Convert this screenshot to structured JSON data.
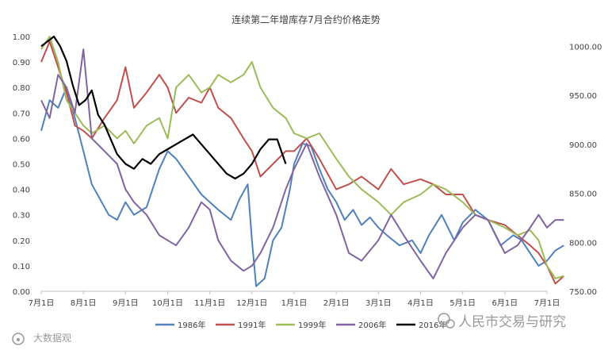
{
  "chart_data": {
    "type": "line",
    "title": "连续第二年增库存7月合约价格走势",
    "x_tick_labels": [
      "7月1日",
      "8月1日",
      "9月1日",
      "10月1日",
      "11月1日",
      "12月1日",
      "1月1日",
      "2月1日",
      "3月1日",
      "4月1日",
      "5月1日",
      "6月1日",
      "7月1日"
    ],
    "y_left": {
      "ylim": [
        0,
        1.0
      ],
      "ticks": [
        "0.00",
        "0.10",
        "0.20",
        "0.30",
        "0.40",
        "0.50",
        "0.60",
        "0.70",
        "0.80",
        "0.90",
        "1.00"
      ]
    },
    "y_right": {
      "ylim": [
        750,
        1010
      ],
      "ticks": [
        "750.00",
        "800.00",
        "850.00",
        "900.00",
        "950.00",
        "1000.00"
      ]
    },
    "grid": false,
    "legend_position": "bottom",
    "series": [
      {
        "name": "1986年",
        "axis": "left",
        "color": "#4f81bd",
        "x": [
          0,
          0.2,
          0.4,
          0.6,
          0.8,
          1.0,
          1.2,
          1.4,
          1.6,
          1.8,
          2.0,
          2.2,
          2.5,
          2.8,
          3.0,
          3.2,
          3.5,
          3.8,
          4.0,
          4.2,
          4.5,
          4.7,
          4.9,
          5.0,
          5.1,
          5.3,
          5.5,
          5.7,
          5.9,
          6.0,
          6.2,
          6.4,
          6.6,
          6.8,
          7.0,
          7.2,
          7.4,
          7.6,
          7.8,
          8.0,
          8.2,
          8.5,
          8.8,
          9.0,
          9.2,
          9.5,
          9.8,
          10.0,
          10.3,
          10.6,
          10.9,
          11.2,
          11.4,
          11.6,
          11.8,
          12.0,
          12.2,
          12.4
        ],
        "values": [
          0.63,
          0.75,
          0.72,
          0.8,
          0.68,
          0.55,
          0.42,
          0.36,
          0.3,
          0.28,
          0.35,
          0.3,
          0.33,
          0.48,
          0.55,
          0.52,
          0.45,
          0.38,
          0.35,
          0.32,
          0.28,
          0.36,
          0.42,
          0.2,
          0.02,
          0.05,
          0.2,
          0.25,
          0.4,
          0.5,
          0.58,
          0.57,
          0.48,
          0.4,
          0.35,
          0.28,
          0.32,
          0.26,
          0.29,
          0.25,
          0.22,
          0.18,
          0.2,
          0.15,
          0.22,
          0.3,
          0.2,
          0.27,
          0.32,
          0.28,
          0.18,
          0.22,
          0.2,
          0.15,
          0.1,
          0.12,
          0.16,
          0.18
        ]
      },
      {
        "name": "1991年",
        "axis": "left",
        "color": "#c0504d",
        "x": [
          0,
          0.2,
          0.4,
          0.6,
          0.8,
          1.0,
          1.2,
          1.5,
          1.8,
          2.0,
          2.2,
          2.5,
          2.8,
          3.0,
          3.2,
          3.5,
          3.8,
          4.0,
          4.2,
          4.5,
          4.8,
          5.0,
          5.2,
          5.5,
          5.8,
          6.0,
          6.3,
          6.6,
          7.0,
          7.3,
          7.6,
          8.0,
          8.3,
          8.6,
          9.0,
          9.3,
          9.6,
          10.0,
          10.3,
          10.6,
          11.0,
          11.3,
          11.6,
          11.8,
          12.0,
          12.2,
          12.4
        ],
        "values": [
          0.9,
          0.98,
          0.88,
          0.78,
          0.65,
          0.63,
          0.6,
          0.68,
          0.75,
          0.88,
          0.72,
          0.78,
          0.85,
          0.8,
          0.7,
          0.76,
          0.74,
          0.8,
          0.72,
          0.68,
          0.6,
          0.55,
          0.45,
          0.5,
          0.55,
          0.55,
          0.6,
          0.52,
          0.4,
          0.42,
          0.45,
          0.4,
          0.48,
          0.42,
          0.44,
          0.42,
          0.38,
          0.38,
          0.3,
          0.28,
          0.26,
          0.22,
          0.18,
          0.15,
          0.1,
          0.03,
          0.06
        ]
      },
      {
        "name": "1999年",
        "axis": "left",
        "color": "#9bbb59",
        "x": [
          0,
          0.2,
          0.4,
          0.6,
          0.8,
          1.0,
          1.2,
          1.5,
          1.8,
          2.0,
          2.2,
          2.5,
          2.8,
          3.0,
          3.2,
          3.5,
          3.8,
          4.0,
          4.2,
          4.5,
          4.8,
          5.0,
          5.2,
          5.5,
          5.8,
          6.0,
          6.3,
          6.6,
          7.0,
          7.3,
          7.6,
          8.0,
          8.3,
          8.6,
          9.0,
          9.3,
          9.6,
          10.0,
          10.3,
          10.6,
          11.0,
          11.3,
          11.6,
          11.8,
          12.0,
          12.2,
          12.4
        ],
        "values": [
          0.95,
          1.0,
          0.9,
          0.75,
          0.7,
          0.65,
          0.62,
          0.65,
          0.6,
          0.63,
          0.58,
          0.65,
          0.68,
          0.6,
          0.8,
          0.85,
          0.78,
          0.8,
          0.85,
          0.82,
          0.85,
          0.9,
          0.8,
          0.72,
          0.68,
          0.62,
          0.6,
          0.62,
          0.52,
          0.45,
          0.4,
          0.35,
          0.3,
          0.35,
          0.38,
          0.42,
          0.4,
          0.35,
          0.3,
          0.28,
          0.25,
          0.22,
          0.24,
          0.2,
          0.1,
          0.05,
          0.06
        ]
      },
      {
        "name": "2006年",
        "axis": "left",
        "color": "#8064a2",
        "x": [
          0,
          0.2,
          0.4,
          0.6,
          0.8,
          1.0,
          1.2,
          1.5,
          1.8,
          2.0,
          2.2,
          2.5,
          2.8,
          3.0,
          3.2,
          3.5,
          3.8,
          4.0,
          4.2,
          4.5,
          4.8,
          5.0,
          5.2,
          5.5,
          5.8,
          6.0,
          6.3,
          6.6,
          7.0,
          7.3,
          7.6,
          8.0,
          8.3,
          8.6,
          9.0,
          9.3,
          9.6,
          10.0,
          10.3,
          10.6,
          11.0,
          11.3,
          11.6,
          11.8,
          12.0,
          12.2,
          12.4
        ],
        "values": [
          0.75,
          0.68,
          0.85,
          0.8,
          0.7,
          0.95,
          0.6,
          0.55,
          0.5,
          0.4,
          0.35,
          0.3,
          0.22,
          0.2,
          0.18,
          0.25,
          0.35,
          0.32,
          0.2,
          0.12,
          0.08,
          0.1,
          0.15,
          0.25,
          0.4,
          0.48,
          0.58,
          0.45,
          0.3,
          0.15,
          0.12,
          0.2,
          0.3,
          0.22,
          0.12,
          0.05,
          0.15,
          0.25,
          0.3,
          0.28,
          0.15,
          0.18,
          0.25,
          0.3,
          0.25,
          0.28,
          0.28
        ]
      },
      {
        "name": "2016年",
        "axis": "right",
        "color": "#000000",
        "x": [
          0,
          0.15,
          0.3,
          0.45,
          0.6,
          0.75,
          0.9,
          1.05,
          1.2,
          1.35,
          1.5,
          1.65,
          1.8,
          2.0,
          2.2,
          2.4,
          2.6,
          2.8,
          3.0,
          3.2,
          3.4,
          3.6,
          3.8,
          4.0,
          4.2,
          4.4,
          4.6,
          4.8,
          5.0,
          5.2,
          5.4,
          5.6,
          5.8
        ],
        "values": [
          1000,
          1005,
          1010,
          1000,
          985,
          960,
          940,
          945,
          955,
          930,
          920,
          905,
          890,
          880,
          875,
          885,
          880,
          890,
          895,
          900,
          905,
          910,
          900,
          890,
          880,
          870,
          865,
          870,
          880,
          895,
          905,
          905,
          880
        ]
      }
    ],
    "watermarks": [
      "人民市交易与研究",
      "大数据观"
    ]
  }
}
